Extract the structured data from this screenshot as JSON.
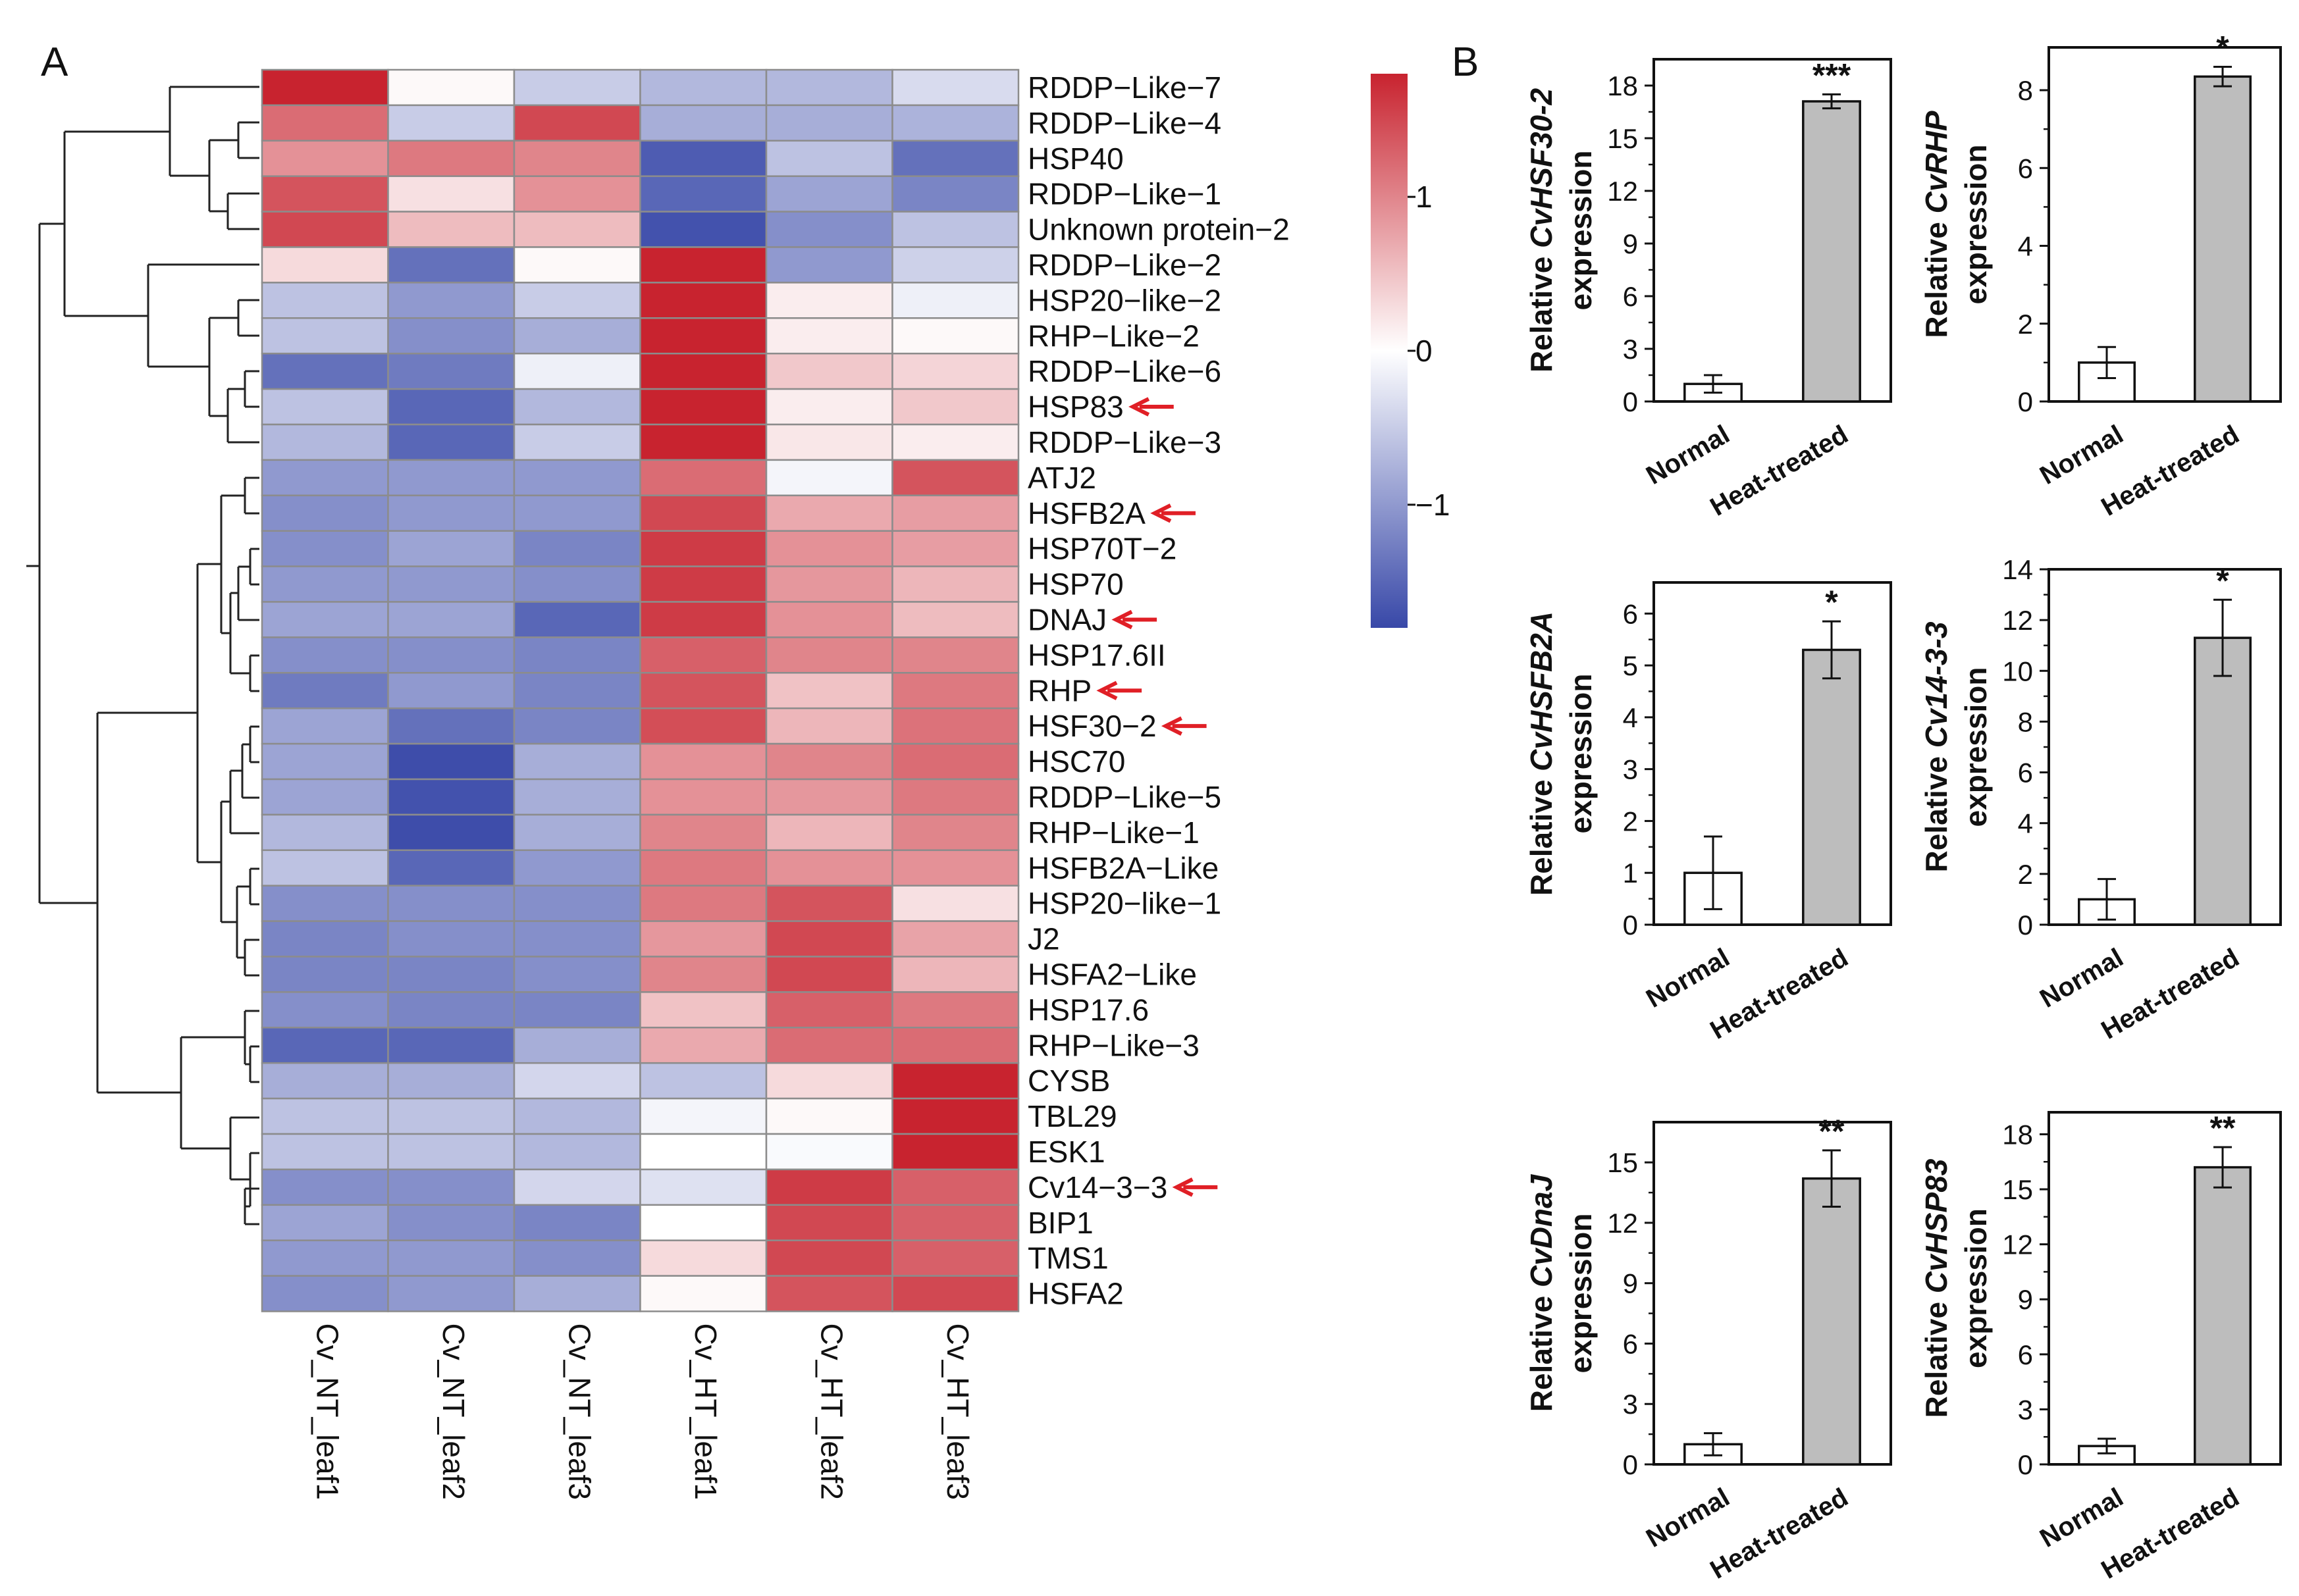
{
  "panels": {
    "a": "A",
    "b": "B"
  },
  "colors": {
    "low": "#3848a8",
    "mid": "#ffffff",
    "high": "#c8232f",
    "cell_border": "#8c8c8c",
    "arrow": "#e01f26",
    "bar_normal": "#ffffff",
    "bar_heat": "#bdbdbd"
  },
  "chart_data": [
    {
      "type": "heatmap",
      "title": "",
      "columns": [
        "Cv_NT_leaf1",
        "Cv_NT_leaf2",
        "Cv_NT_leaf3",
        "Cv_HT_leaf1",
        "Cv_HT_leaf2",
        "Cv_HT_leaf3"
      ],
      "rows": [
        "RDDP−Like−7",
        "RDDP−Like−4",
        "HSP40",
        "RDDP−Like−1",
        "Unknown protein−2",
        "RDDP−Like−2",
        "HSP20−like−2",
        "RHP−Like−2",
        "RDDP−Like−6",
        "HSP83",
        "RDDP−Like−3",
        "ATJ2",
        "HSFB2A",
        "HSP70T−2",
        "HSP70",
        "DNAJ",
        "HSP17.6II",
        "RHP",
        "HSF30−2",
        "HSC70",
        "RDDP−Like−5",
        "RHP−Like−1",
        "HSFB2A−Like",
        "HSP20−like−1",
        "J2",
        "HSFA2−Like",
        "HSP17.6",
        "RHP−Like−3",
        "CYSB",
        "TBL29",
        "ESK1",
        "Cv14−3−3",
        "BIP1",
        "TMS1",
        "HSFA2"
      ],
      "highlighted_rows": [
        "HSP83",
        "HSFB2A",
        "DNAJ",
        "RHP",
        "HSF30−2",
        "Cv14−3−3"
      ],
      "values": [
        [
          1.8,
          0.05,
          -0.5,
          -0.7,
          -0.7,
          -0.35
        ],
        [
          1.2,
          -0.5,
          1.5,
          -0.8,
          -0.8,
          -0.75
        ],
        [
          0.9,
          1.1,
          1.0,
          -1.6,
          -0.6,
          -1.4
        ],
        [
          1.4,
          0.25,
          0.9,
          -1.5,
          -0.9,
          -1.2
        ],
        [
          1.5,
          0.55,
          0.55,
          -1.7,
          -1.1,
          -0.6
        ],
        [
          0.3,
          -1.4,
          0.05,
          1.8,
          -1.0,
          -0.45
        ],
        [
          -0.6,
          -1.0,
          -0.5,
          1.8,
          0.15,
          -0.15
        ],
        [
          -0.6,
          -1.1,
          -0.8,
          1.8,
          0.15,
          0.05
        ],
        [
          -1.4,
          -1.3,
          -0.15,
          1.8,
          0.45,
          0.35
        ],
        [
          -0.6,
          -1.5,
          -0.7,
          1.8,
          0.15,
          0.45
        ],
        [
          -0.7,
          -1.5,
          -0.5,
          1.8,
          0.2,
          0.15
        ],
        [
          -1.0,
          -1.0,
          -1.0,
          1.2,
          -0.1,
          1.4
        ],
        [
          -1.1,
          -1.0,
          -1.0,
          1.5,
          0.7,
          0.8
        ],
        [
          -1.1,
          -0.9,
          -1.2,
          1.6,
          0.9,
          0.8
        ],
        [
          -1.0,
          -1.0,
          -1.1,
          1.6,
          0.85,
          0.6
        ],
        [
          -0.9,
          -0.9,
          -1.5,
          1.6,
          0.9,
          0.55
        ],
        [
          -1.1,
          -1.1,
          -1.2,
          1.3,
          1.0,
          1.0
        ],
        [
          -1.3,
          -1.0,
          -1.2,
          1.4,
          0.5,
          1.1
        ],
        [
          -0.9,
          -1.4,
          -1.2,
          1.45,
          0.6,
          1.15
        ],
        [
          -0.9,
          -1.75,
          -0.8,
          0.9,
          1.0,
          1.2
        ],
        [
          -0.9,
          -1.7,
          -0.8,
          0.9,
          0.85,
          1.1
        ],
        [
          -0.7,
          -1.75,
          -0.8,
          1.0,
          0.6,
          1.0
        ],
        [
          -0.6,
          -1.5,
          -1.0,
          1.1,
          0.9,
          0.9
        ],
        [
          -1.1,
          -1.1,
          -1.1,
          1.1,
          1.4,
          0.25
        ],
        [
          -1.2,
          -1.1,
          -1.1,
          0.85,
          1.5,
          0.75
        ],
        [
          -1.2,
          -1.2,
          -1.1,
          1.0,
          1.5,
          0.6
        ],
        [
          -1.1,
          -1.2,
          -1.2,
          0.5,
          1.3,
          1.1
        ],
        [
          -1.5,
          -1.5,
          -0.8,
          0.7,
          1.2,
          1.2
        ],
        [
          -0.8,
          -0.8,
          -0.4,
          -0.6,
          0.3,
          1.9
        ],
        [
          -0.6,
          -0.6,
          -0.7,
          -0.1,
          0.05,
          1.9
        ],
        [
          -0.6,
          -0.6,
          -0.7,
          0.0,
          -0.05,
          1.9
        ],
        [
          -1.1,
          -1.1,
          -0.4,
          -0.3,
          1.6,
          1.3
        ],
        [
          -0.9,
          -1.1,
          -1.2,
          0.0,
          1.5,
          1.3
        ],
        [
          -1.0,
          -1.0,
          -1.1,
          0.3,
          1.5,
          1.3
        ],
        [
          -1.1,
          -1.0,
          -0.8,
          0.05,
          1.4,
          1.5
        ]
      ],
      "colorbar": {
        "ticks": [
          1,
          0,
          -1
        ],
        "tick_labels": [
          "1",
          "0",
          "−1"
        ],
        "range": [
          -1.8,
          1.8
        ]
      },
      "dendrogram": "hierarchical clustering of rows"
    },
    {
      "type": "bar",
      "ylabel_prefix": "Relative ",
      "ylabel_gene": "CvHSF30-2",
      "ylabel_suffix": "expression",
      "categories": [
        "Normal",
        "Heat-treated"
      ],
      "values": [
        1.0,
        17.1
      ],
      "errors": [
        0.5,
        0.4
      ],
      "significance": "***",
      "ylim": [
        0,
        19.5
      ],
      "yticks": [
        0,
        3,
        6,
        9,
        12,
        15,
        18
      ]
    },
    {
      "type": "bar",
      "ylabel_prefix": "Relative ",
      "ylabel_gene": "CvRHP",
      "ylabel_suffix": "expression",
      "categories": [
        "Normal",
        "Heat-treated"
      ],
      "values": [
        1.0,
        8.35
      ],
      "errors": [
        0.4,
        0.25
      ],
      "significance": "*",
      "ylim": [
        0,
        9.1
      ],
      "yticks": [
        0,
        2,
        4,
        6,
        8
      ]
    },
    {
      "type": "bar",
      "ylabel_prefix": "Relative ",
      "ylabel_gene": "CvHSFB2A",
      "ylabel_suffix": "expression",
      "categories": [
        "Normal",
        "Heat-treated"
      ],
      "values": [
        1.0,
        5.3
      ],
      "errors": [
        0.7,
        0.55
      ],
      "significance": "*",
      "ylim": [
        0,
        6.6
      ],
      "yticks": [
        0,
        1,
        2,
        3,
        4,
        5,
        6
      ]
    },
    {
      "type": "bar",
      "ylabel_prefix": "Relative ",
      "ylabel_gene": "Cv14-3-3",
      "ylabel_suffix": "expression",
      "categories": [
        "Normal",
        "Heat-treated"
      ],
      "values": [
        1.0,
        11.3
      ],
      "errors": [
        0.8,
        1.5
      ],
      "significance": "*",
      "ylim": [
        0,
        14
      ],
      "yticks": [
        0,
        2,
        4,
        6,
        8,
        10,
        12,
        14
      ]
    },
    {
      "type": "bar",
      "ylabel_prefix": "Relative ",
      "ylabel_gene": "CvDnaJ",
      "ylabel_suffix": "expression",
      "categories": [
        "Normal",
        "Heat-treated"
      ],
      "values": [
        1.0,
        14.2
      ],
      "errors": [
        0.55,
        1.4
      ],
      "significance": "**",
      "ylim": [
        0,
        17
      ],
      "yticks": [
        0,
        3,
        6,
        9,
        12,
        15
      ]
    },
    {
      "type": "bar",
      "ylabel_prefix": "Relative ",
      "ylabel_gene": "CvHSP83",
      "ylabel_suffix": "expression",
      "categories": [
        "Normal",
        "Heat-treated"
      ],
      "values": [
        1.0,
        16.2
      ],
      "errors": [
        0.4,
        1.1
      ],
      "significance": "**",
      "ylim": [
        0,
        19.2
      ],
      "yticks": [
        0,
        3,
        6,
        9,
        12,
        15,
        18
      ]
    }
  ]
}
